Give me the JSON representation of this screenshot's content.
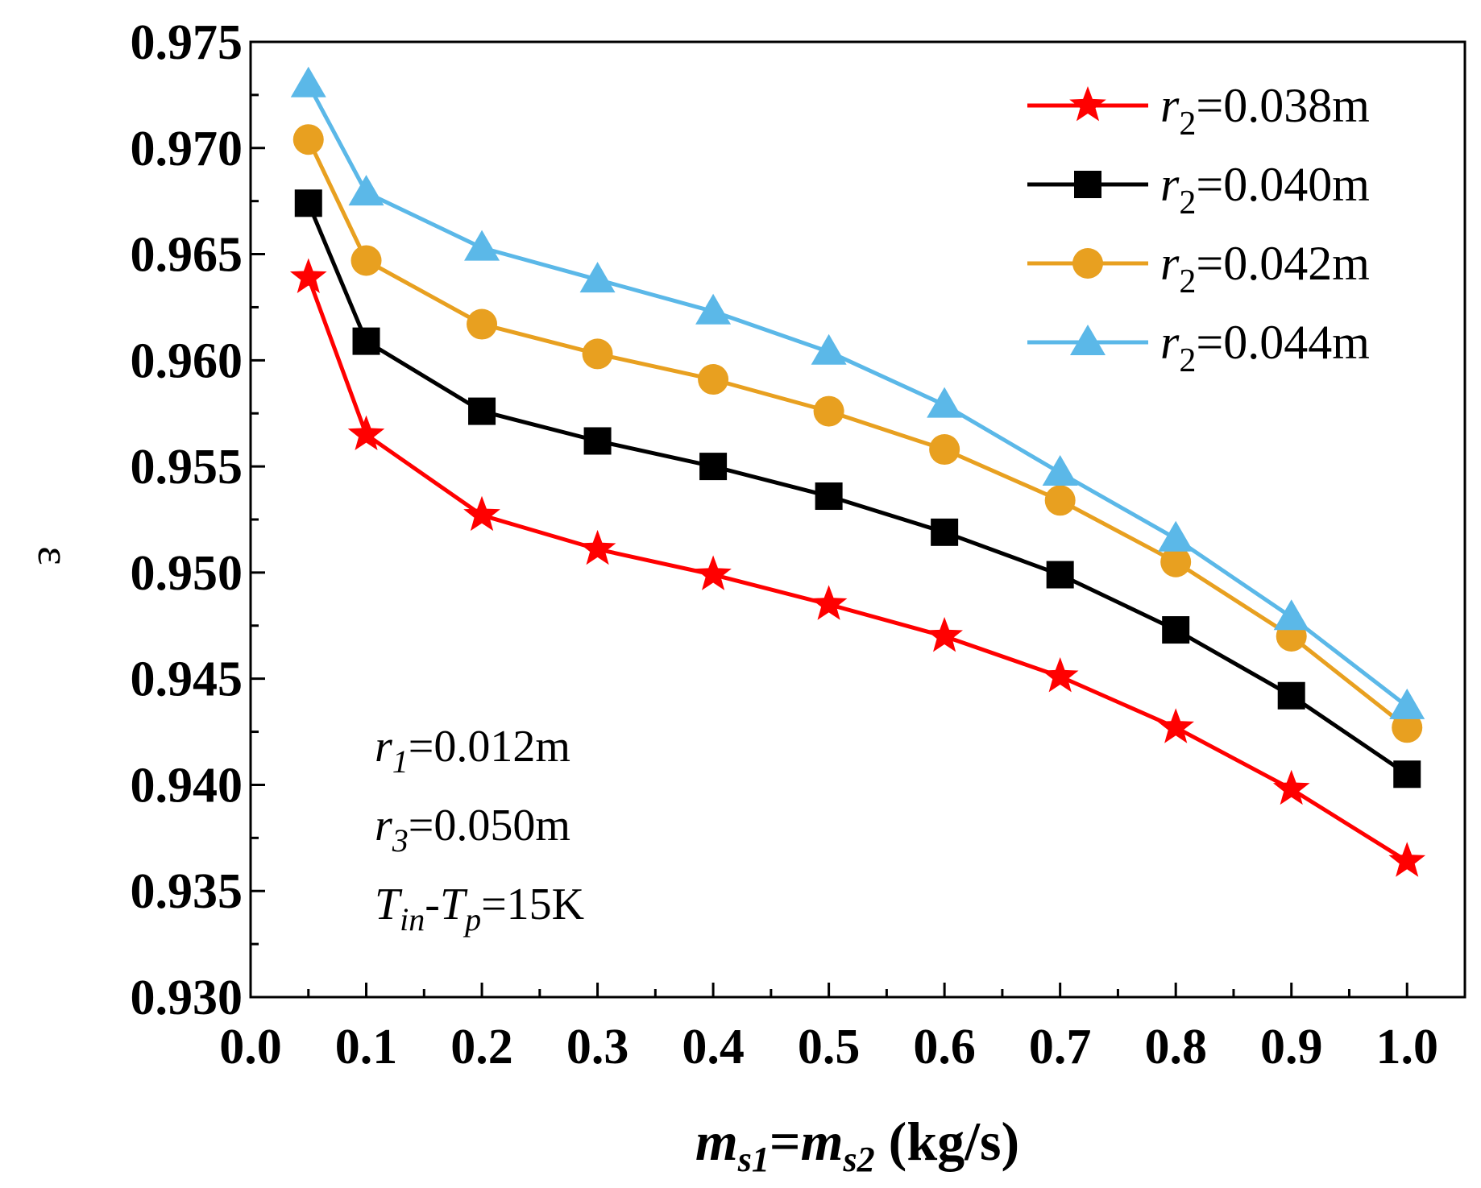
{
  "chart_data": {
    "type": "line",
    "x": [
      0.05,
      0.1,
      0.2,
      0.3,
      0.4,
      0.5,
      0.6,
      0.7,
      0.8,
      0.9,
      1.0
    ],
    "xlim": [
      0.0,
      1.05
    ],
    "ylim": [
      0.93,
      0.975
    ],
    "xticks": [
      "0.0",
      "0.1",
      "0.2",
      "0.3",
      "0.4",
      "0.5",
      "0.6",
      "0.7",
      "0.8",
      "0.9",
      "1.0"
    ],
    "yticks": [
      "0.930",
      "0.935",
      "0.940",
      "0.945",
      "0.950",
      "0.955",
      "0.960",
      "0.965",
      "0.970",
      "0.975"
    ],
    "xlabel": {
      "m1": "m",
      "s1": "s1",
      "eq": "=",
      "m2": "m",
      "s2": "s2",
      "unit": " (kg/s)"
    },
    "ylabel": "ε",
    "grid": false,
    "legend_position": "top-right",
    "series": [
      {
        "name": {
          "var": "r",
          "sub": "2",
          "rest": "=0.038m"
        },
        "color": "#ff0000",
        "marker": "star",
        "values": [
          0.9639,
          0.9565,
          0.9527,
          0.9511,
          0.9499,
          0.9485,
          0.947,
          0.9451,
          0.9427,
          0.9398,
          0.9364
        ]
      },
      {
        "name": {
          "var": "r",
          "sub": "2",
          "rest": "=0.040m"
        },
        "color": "#000000",
        "marker": "square",
        "values": [
          0.9674,
          0.9609,
          0.9576,
          0.9562,
          0.955,
          0.9536,
          0.9519,
          0.9499,
          0.9473,
          0.9442,
          0.9405
        ]
      },
      {
        "name": {
          "var": "r",
          "sub": "2",
          "rest": "=0.042m"
        },
        "color": "#e8a020",
        "marker": "circle",
        "values": [
          0.9704,
          0.9647,
          0.9617,
          0.9603,
          0.9591,
          0.9576,
          0.9558,
          0.9534,
          0.9505,
          0.947,
          0.9427
        ]
      },
      {
        "name": {
          "var": "r",
          "sub": "2",
          "rest": "=0.044m"
        },
        "color": "#5bb8e8",
        "marker": "triangle",
        "values": [
          0.973,
          0.9679,
          0.9653,
          0.9638,
          0.9623,
          0.9604,
          0.9579,
          0.9547,
          0.9516,
          0.9479,
          0.9437
        ]
      }
    ],
    "annotations": [
      {
        "var": "r",
        "sub": "1",
        "rest": "=0.012m"
      },
      {
        "var": "r",
        "sub": "3",
        "rest": "=0.050m"
      },
      {
        "var": "T",
        "sub": "in",
        "mid": "-",
        "var2": "T",
        "sub2": "p",
        "rest": "=15K"
      }
    ]
  }
}
